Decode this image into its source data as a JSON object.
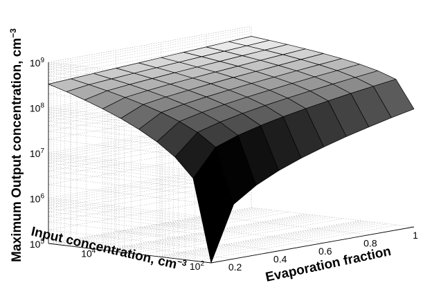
{
  "chart_data": {
    "type": "surface",
    "title": "",
    "zlabel": "Maximum Output concentration, cm",
    "zlabel_sup": "−3",
    "xlabel": "Evaporation fraction",
    "ylabel": "Input concentration, cm",
    "ylabel_sup": "−3",
    "zscale": "log",
    "yscale": "log",
    "zlim": [
      100000,
      1000000000
    ],
    "xlim": [
      0.1,
      1.0
    ],
    "ylim": [
      100,
      100000
    ],
    "grid": true,
    "colormap": "gray",
    "z_ticks": [
      {
        "base": "10",
        "exp": "5"
      },
      {
        "base": "10",
        "exp": "6"
      },
      {
        "base": "10",
        "exp": "7"
      },
      {
        "base": "10",
        "exp": "8"
      },
      {
        "base": "10",
        "exp": "9"
      }
    ],
    "x_ticks": [
      "0.2",
      "0.4",
      "0.6",
      "0.8",
      "1"
    ],
    "y_ticks": [
      {
        "base": "10",
        "exp": "2"
      },
      {
        "base": "10",
        "exp": "4"
      }
    ],
    "x": [
      0.1,
      0.2,
      0.3,
      0.4,
      0.5,
      0.6,
      0.7,
      0.8,
      0.9,
      1.0
    ],
    "y": [
      100,
      215.4,
      464.2,
      1000,
      2154,
      4642,
      10000,
      21544,
      46416,
      100000
    ],
    "z_corners": {
      "x0.1_y100": 100000,
      "x1.0_y100": 40000000,
      "x0.1_y100000": 330000000,
      "x1.0_y100000": 600000000
    }
  }
}
